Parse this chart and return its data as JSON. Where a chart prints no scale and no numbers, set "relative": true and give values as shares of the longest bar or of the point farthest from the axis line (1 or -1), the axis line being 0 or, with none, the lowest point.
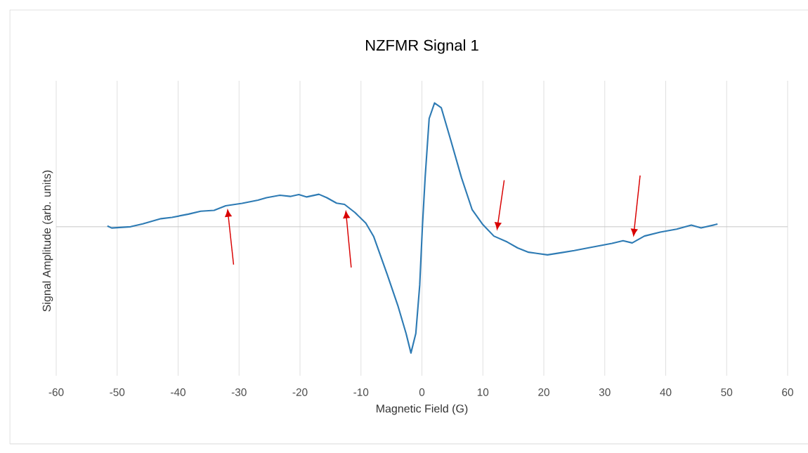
{
  "chart_data": {
    "type": "line",
    "title": "NZFMR Signal 1",
    "xlabel": "Magnetic Field (G)",
    "ylabel": "Signal Amplitude (arb. units)",
    "relative": true,
    "grid": "x",
    "color": "#2e7bb4",
    "xlim": [
      -60,
      60
    ],
    "xticks": [
      -60,
      -50,
      -40,
      -30,
      -20,
      -10,
      0,
      10,
      20,
      30,
      40,
      50,
      60
    ],
    "x": [
      -51.6,
      -50.9,
      -47.8,
      -45.8,
      -42.8,
      -41.0,
      -38.3,
      -36.3,
      -34.1,
      -32.2,
      -29.5,
      -26.9,
      -25.5,
      -23.3,
      -21.6,
      -20.2,
      -18.9,
      -16.9,
      -15.6,
      -14.0,
      -12.7,
      -11.0,
      -9.2,
      -7.9,
      -5.7,
      -3.9,
      -2.6,
      -1.8,
      -1.0,
      -0.36,
      0.08,
      0.53,
      1.19,
      2.07,
      3.17,
      4.72,
      6.49,
      8.25,
      10.0,
      11.8,
      14.0,
      15.7,
      17.5,
      20.6,
      22.8,
      25.0,
      27.7,
      31.2,
      33.0,
      34.5,
      36.5,
      39.1,
      41.8,
      44.2,
      45.8,
      48.5
    ],
    "values": [
      0.006,
      -0.01,
      0.0,
      0.023,
      0.064,
      0.074,
      0.1,
      0.123,
      0.13,
      0.166,
      0.185,
      0.21,
      0.23,
      0.249,
      0.24,
      0.255,
      0.236,
      0.257,
      0.23,
      0.187,
      0.177,
      0.113,
      0.028,
      -0.079,
      -0.377,
      -0.632,
      -0.845,
      -1.0,
      -0.845,
      -0.462,
      0.0,
      0.39,
      0.857,
      0.98,
      0.943,
      0.687,
      0.389,
      0.134,
      0.017,
      -0.074,
      -0.121,
      -0.168,
      -0.202,
      -0.223,
      -0.206,
      -0.189,
      -0.164,
      -0.132,
      -0.111,
      -0.128,
      -0.074,
      -0.043,
      -0.019,
      0.013,
      -0.009,
      0.021
    ]
  }
}
